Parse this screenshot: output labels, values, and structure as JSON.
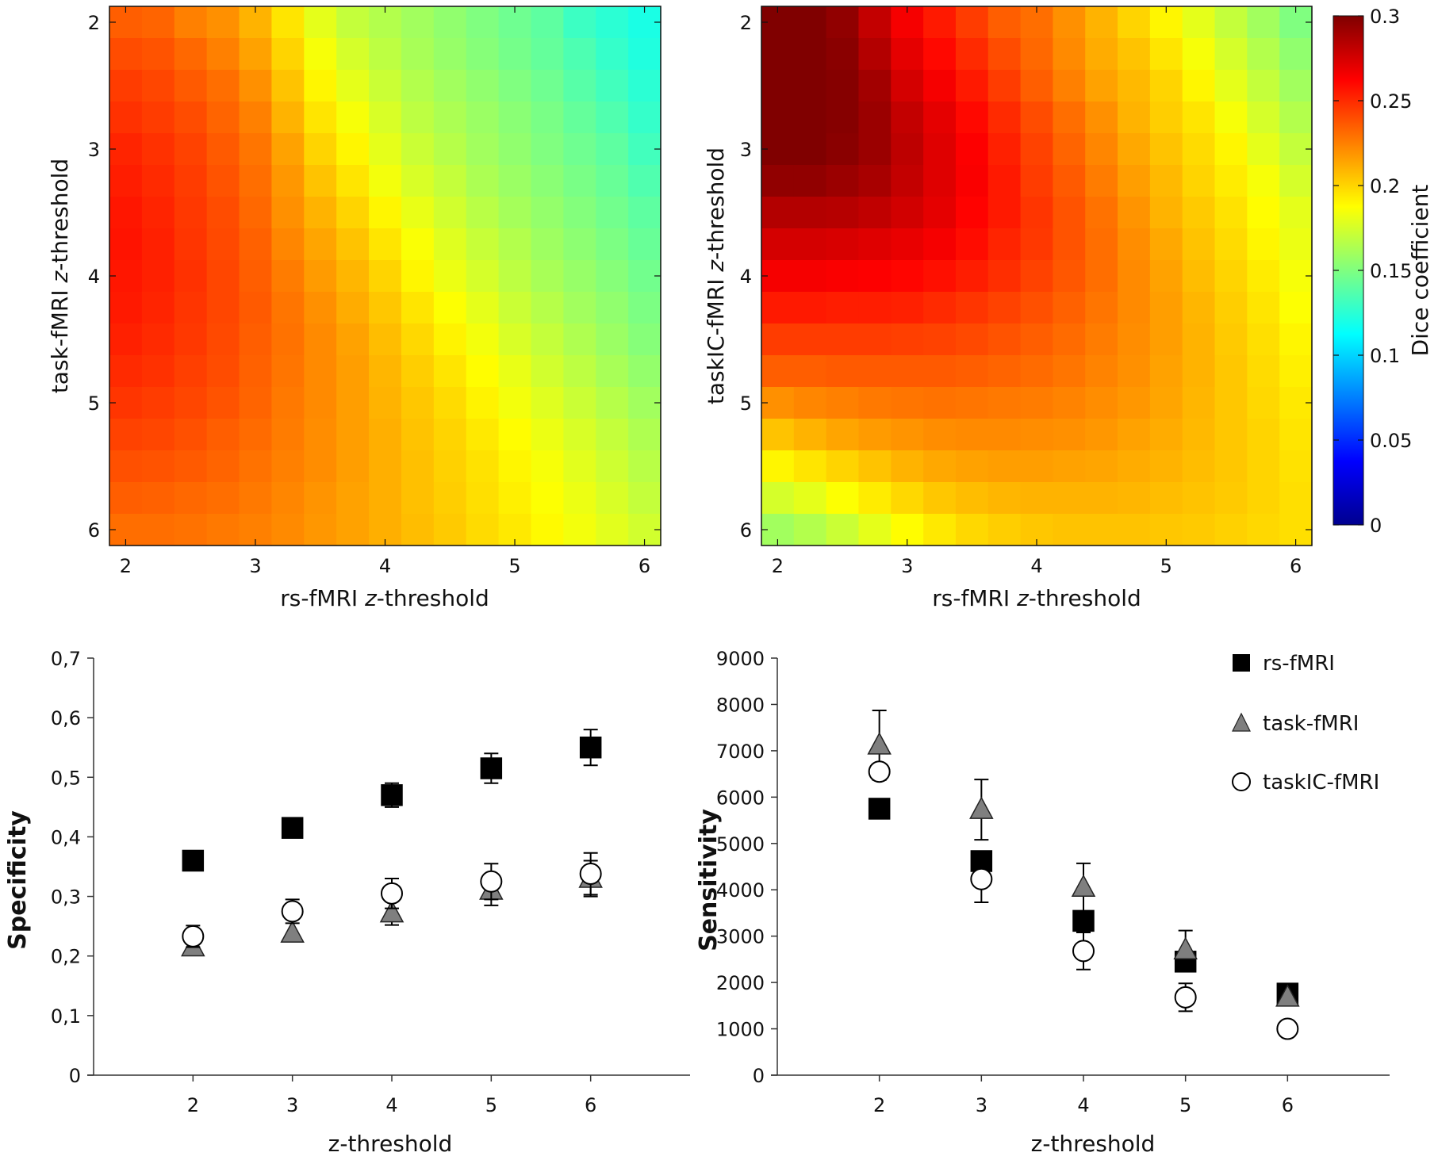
{
  "colors": {
    "rs_fmri_marker": "#000000",
    "task_fmri_marker": "#7f7f7f",
    "taskic_fmri_marker": "#ffffff",
    "axis": "#333333"
  },
  "chart_data": [
    {
      "type": "heatmap",
      "panel": "top-left",
      "xlabel_prefix": "rs-fMRI ",
      "xlabel_italic": "z",
      "xlabel_suffix": "-threshold",
      "ylabel_prefix": "task-fMRI ",
      "ylabel_italic": "z",
      "ylabel_suffix": "-threshold",
      "x_range": [
        1.875,
        6.125
      ],
      "y_range": [
        1.875,
        6.125
      ],
      "x_ticks": [
        2,
        3,
        4,
        5,
        6
      ],
      "y_ticks": [
        2,
        3,
        4,
        5,
        6
      ],
      "x_tick_labels": [
        "2",
        "3",
        "4",
        "5",
        "6"
      ],
      "y_tick_labels": [
        "2",
        "3",
        "4",
        "5",
        "6"
      ],
      "grid_step": 0.25,
      "color_range": [
        0,
        0.3
      ],
      "values": [
        [
          0.235,
          0.233,
          0.225,
          0.22,
          0.21,
          0.195,
          0.18,
          0.17,
          0.165,
          0.16,
          0.155,
          0.15,
          0.145,
          0.14,
          0.13,
          0.125,
          0.12
        ],
        [
          0.24,
          0.238,
          0.232,
          0.225,
          0.215,
          0.2,
          0.185,
          0.175,
          0.168,
          0.162,
          0.157,
          0.152,
          0.147,
          0.142,
          0.135,
          0.128,
          0.122
        ],
        [
          0.245,
          0.242,
          0.236,
          0.23,
          0.22,
          0.205,
          0.19,
          0.18,
          0.172,
          0.165,
          0.16,
          0.155,
          0.15,
          0.145,
          0.138,
          0.132,
          0.125
        ],
        [
          0.248,
          0.245,
          0.24,
          0.233,
          0.225,
          0.21,
          0.195,
          0.185,
          0.176,
          0.168,
          0.163,
          0.158,
          0.153,
          0.148,
          0.142,
          0.136,
          0.128
        ],
        [
          0.252,
          0.248,
          0.243,
          0.236,
          0.228,
          0.215,
          0.2,
          0.19,
          0.18,
          0.172,
          0.166,
          0.16,
          0.155,
          0.15,
          0.145,
          0.14,
          0.132
        ],
        [
          0.254,
          0.25,
          0.245,
          0.238,
          0.23,
          0.218,
          0.205,
          0.195,
          0.184,
          0.176,
          0.17,
          0.163,
          0.158,
          0.153,
          0.148,
          0.143,
          0.136
        ],
        [
          0.256,
          0.252,
          0.246,
          0.24,
          0.232,
          0.22,
          0.21,
          0.2,
          0.19,
          0.181,
          0.174,
          0.167,
          0.161,
          0.156,
          0.151,
          0.146,
          0.14
        ],
        [
          0.257,
          0.253,
          0.247,
          0.241,
          0.234,
          0.223,
          0.214,
          0.205,
          0.195,
          0.186,
          0.178,
          0.171,
          0.165,
          0.159,
          0.154,
          0.149,
          0.143
        ],
        [
          0.256,
          0.253,
          0.248,
          0.242,
          0.235,
          0.226,
          0.217,
          0.209,
          0.2,
          0.19,
          0.182,
          0.175,
          0.168,
          0.162,
          0.157,
          0.152,
          0.146
        ],
        [
          0.255,
          0.252,
          0.247,
          0.242,
          0.236,
          0.228,
          0.22,
          0.212,
          0.204,
          0.195,
          0.187,
          0.18,
          0.172,
          0.166,
          0.16,
          0.155,
          0.149
        ],
        [
          0.253,
          0.25,
          0.246,
          0.241,
          0.235,
          0.229,
          0.222,
          0.215,
          0.207,
          0.199,
          0.191,
          0.184,
          0.176,
          0.17,
          0.164,
          0.158,
          0.152
        ],
        [
          0.25,
          0.248,
          0.244,
          0.24,
          0.234,
          0.228,
          0.222,
          0.216,
          0.209,
          0.202,
          0.195,
          0.188,
          0.181,
          0.174,
          0.168,
          0.162,
          0.156
        ],
        [
          0.247,
          0.245,
          0.242,
          0.238,
          0.233,
          0.227,
          0.222,
          0.216,
          0.21,
          0.204,
          0.198,
          0.191,
          0.184,
          0.178,
          0.172,
          0.166,
          0.16
        ],
        [
          0.243,
          0.242,
          0.239,
          0.235,
          0.231,
          0.226,
          0.221,
          0.216,
          0.211,
          0.205,
          0.2,
          0.194,
          0.188,
          0.182,
          0.176,
          0.17,
          0.164
        ],
        [
          0.239,
          0.238,
          0.236,
          0.233,
          0.229,
          0.225,
          0.221,
          0.216,
          0.211,
          0.206,
          0.201,
          0.196,
          0.19,
          0.185,
          0.179,
          0.173,
          0.167
        ],
        [
          0.235,
          0.234,
          0.232,
          0.23,
          0.227,
          0.223,
          0.219,
          0.215,
          0.211,
          0.206,
          0.202,
          0.197,
          0.192,
          0.187,
          0.182,
          0.176,
          0.17
        ],
        [
          0.23,
          0.23,
          0.229,
          0.227,
          0.225,
          0.222,
          0.218,
          0.215,
          0.211,
          0.207,
          0.203,
          0.198,
          0.194,
          0.189,
          0.184,
          0.179,
          0.174
        ]
      ]
    },
    {
      "type": "heatmap",
      "panel": "top-right",
      "xlabel_prefix": "rs-fMRI ",
      "xlabel_italic": "z",
      "xlabel_suffix": "-threshold",
      "ylabel_prefix": "taskIC-fMRI ",
      "ylabel_italic": "z",
      "ylabel_suffix": "-threshold",
      "x_range": [
        1.875,
        6.125
      ],
      "y_range": [
        1.875,
        6.125
      ],
      "x_ticks": [
        2,
        3,
        4,
        5,
        6
      ],
      "y_ticks": [
        2,
        3,
        4,
        5,
        6
      ],
      "x_tick_labels": [
        "2",
        "3",
        "4",
        "5",
        "6"
      ],
      "y_tick_labels": [
        "2",
        "3",
        "4",
        "5",
        "6"
      ],
      "grid_step": 0.25,
      "color_range": [
        0,
        0.3
      ],
      "colorbar_label": "Dice coefficient",
      "colorbar_ticks": [
        0,
        0.05,
        0.1,
        0.15,
        0.2,
        0.25,
        0.3
      ],
      "colorbar_tick_labels": [
        "0",
        "0.05",
        "0.1",
        "0.15",
        "0.2",
        "0.25",
        "0.3"
      ],
      "values": [
        [
          0.3,
          0.3,
          0.295,
          0.28,
          0.265,
          0.255,
          0.245,
          0.235,
          0.23,
          0.22,
          0.21,
          0.2,
          0.19,
          0.18,
          0.17,
          0.16,
          0.15
        ],
        [
          0.3,
          0.3,
          0.297,
          0.285,
          0.27,
          0.26,
          0.25,
          0.24,
          0.232,
          0.222,
          0.212,
          0.205,
          0.195,
          0.185,
          0.175,
          0.165,
          0.155
        ],
        [
          0.3,
          0.3,
          0.298,
          0.29,
          0.275,
          0.265,
          0.255,
          0.245,
          0.235,
          0.225,
          0.215,
          0.208,
          0.2,
          0.19,
          0.18,
          0.17,
          0.16
        ],
        [
          0.3,
          0.3,
          0.298,
          0.292,
          0.28,
          0.27,
          0.26,
          0.25,
          0.24,
          0.23,
          0.22,
          0.21,
          0.202,
          0.195,
          0.185,
          0.175,
          0.165
        ],
        [
          0.3,
          0.3,
          0.297,
          0.292,
          0.282,
          0.272,
          0.263,
          0.253,
          0.243,
          0.233,
          0.223,
          0.213,
          0.205,
          0.198,
          0.19,
          0.18,
          0.17
        ],
        [
          0.295,
          0.295,
          0.292,
          0.288,
          0.28,
          0.272,
          0.264,
          0.255,
          0.245,
          0.236,
          0.226,
          0.216,
          0.208,
          0.2,
          0.193,
          0.185,
          0.175
        ],
        [
          0.285,
          0.285,
          0.284,
          0.281,
          0.276,
          0.27,
          0.262,
          0.255,
          0.247,
          0.238,
          0.229,
          0.219,
          0.21,
          0.203,
          0.196,
          0.188,
          0.18
        ],
        [
          0.275,
          0.275,
          0.274,
          0.272,
          0.269,
          0.265,
          0.259,
          0.252,
          0.246,
          0.238,
          0.23,
          0.221,
          0.213,
          0.205,
          0.198,
          0.19,
          0.182
        ],
        [
          0.265,
          0.265,
          0.264,
          0.263,
          0.261,
          0.258,
          0.254,
          0.249,
          0.243,
          0.237,
          0.23,
          0.222,
          0.215,
          0.207,
          0.2,
          0.193,
          0.185
        ],
        [
          0.255,
          0.255,
          0.254,
          0.254,
          0.253,
          0.25,
          0.247,
          0.243,
          0.239,
          0.234,
          0.228,
          0.222,
          0.216,
          0.209,
          0.202,
          0.195,
          0.187
        ],
        [
          0.245,
          0.245,
          0.245,
          0.245,
          0.244,
          0.243,
          0.241,
          0.238,
          0.235,
          0.231,
          0.226,
          0.221,
          0.216,
          0.21,
          0.203,
          0.197,
          0.19
        ],
        [
          0.235,
          0.235,
          0.236,
          0.236,
          0.236,
          0.236,
          0.235,
          0.233,
          0.231,
          0.228,
          0.224,
          0.22,
          0.215,
          0.21,
          0.204,
          0.198,
          0.192
        ],
        [
          0.22,
          0.223,
          0.225,
          0.227,
          0.228,
          0.229,
          0.228,
          0.227,
          0.226,
          0.224,
          0.221,
          0.218,
          0.214,
          0.209,
          0.204,
          0.199,
          0.194
        ],
        [
          0.205,
          0.21,
          0.214,
          0.217,
          0.219,
          0.221,
          0.222,
          0.222,
          0.221,
          0.22,
          0.218,
          0.215,
          0.212,
          0.208,
          0.204,
          0.2,
          0.195
        ],
        [
          0.19,
          0.195,
          0.2,
          0.205,
          0.21,
          0.213,
          0.215,
          0.216,
          0.216,
          0.215,
          0.214,
          0.212,
          0.21,
          0.207,
          0.204,
          0.2,
          0.196
        ],
        [
          0.175,
          0.18,
          0.187,
          0.193,
          0.199,
          0.204,
          0.207,
          0.209,
          0.21,
          0.21,
          0.21,
          0.209,
          0.207,
          0.205,
          0.203,
          0.2,
          0.197
        ],
        [
          0.16,
          0.165,
          0.172,
          0.18,
          0.188,
          0.194,
          0.199,
          0.202,
          0.204,
          0.205,
          0.205,
          0.205,
          0.204,
          0.203,
          0.201,
          0.199,
          0.197
        ]
      ]
    },
    {
      "type": "scatter",
      "panel": "bottom-left",
      "xlabel": "z-threshold",
      "ylabel": "Specificity",
      "xlim": [
        1,
        7
      ],
      "ylim": [
        0,
        0.7
      ],
      "x_ticks": [
        2,
        3,
        4,
        5,
        6
      ],
      "y_ticks": [
        0,
        0.1,
        0.2,
        0.3,
        0.4,
        0.5,
        0.6,
        0.7
      ],
      "x_tick_labels": [
        "2",
        "3",
        "4",
        "5",
        "6"
      ],
      "y_tick_labels": [
        "0",
        "0,1",
        "0,2",
        "0,3",
        "0,4",
        "0,5",
        "0,6",
        "0,7"
      ],
      "series": [
        {
          "name": "rs-fMRI",
          "marker": "square",
          "x": [
            2,
            3,
            4,
            5,
            6
          ],
          "y": [
            0.36,
            0.415,
            0.47,
            0.515,
            0.55
          ],
          "err": [
            0.0,
            0.0,
            0.02,
            0.025,
            0.03
          ]
        },
        {
          "name": "task-fMRI",
          "marker": "triangle",
          "x": [
            2,
            3,
            4,
            5,
            6
          ],
          "y": [
            0.215,
            0.238,
            0.272,
            0.31,
            0.33
          ],
          "err": [
            0.0,
            0.0,
            0.02,
            0.025,
            0.03
          ]
        },
        {
          "name": "taskIC-fMRI",
          "marker": "circle",
          "x": [
            2,
            3,
            4,
            5,
            6
          ],
          "y": [
            0.233,
            0.275,
            0.305,
            0.325,
            0.338
          ],
          "err": [
            0.018,
            0.02,
            0.025,
            0.03,
            0.035
          ]
        }
      ]
    },
    {
      "type": "scatter",
      "panel": "bottom-right",
      "xlabel": "z-threshold",
      "ylabel": "Sensitivity",
      "xlim": [
        1,
        7
      ],
      "ylim": [
        0,
        9000
      ],
      "x_ticks": [
        2,
        3,
        4,
        5,
        6
      ],
      "y_ticks": [
        0,
        1000,
        2000,
        3000,
        4000,
        5000,
        6000,
        7000,
        8000,
        9000
      ],
      "x_tick_labels": [
        "2",
        "3",
        "4",
        "5",
        "6"
      ],
      "y_tick_labels": [
        "0",
        "1000",
        "2000",
        "3000",
        "4000",
        "5000",
        "6000",
        "7000",
        "8000",
        "9000"
      ],
      "legend_position": "top-right",
      "series": [
        {
          "name": "rs-fMRI",
          "marker": "square",
          "x": [
            2,
            3,
            4,
            5,
            6
          ],
          "y": [
            5750,
            4620,
            3330,
            2450,
            1760
          ],
          "err": [
            200,
            0,
            0,
            0,
            0
          ]
        },
        {
          "name": "task-fMRI",
          "marker": "triangle",
          "x": [
            2,
            3,
            4,
            5,
            6
          ],
          "y": [
            7120,
            5730,
            4050,
            2700,
            1680
          ],
          "err": [
            750,
            650,
            520,
            420,
            0
          ]
        },
        {
          "name": "taskIC-fMRI",
          "marker": "circle",
          "x": [
            2,
            3,
            4,
            5,
            6
          ],
          "y": [
            6550,
            4230,
            2680,
            1680,
            1000
          ],
          "err": [
            0,
            500,
            400,
            300,
            0
          ]
        }
      ]
    }
  ]
}
